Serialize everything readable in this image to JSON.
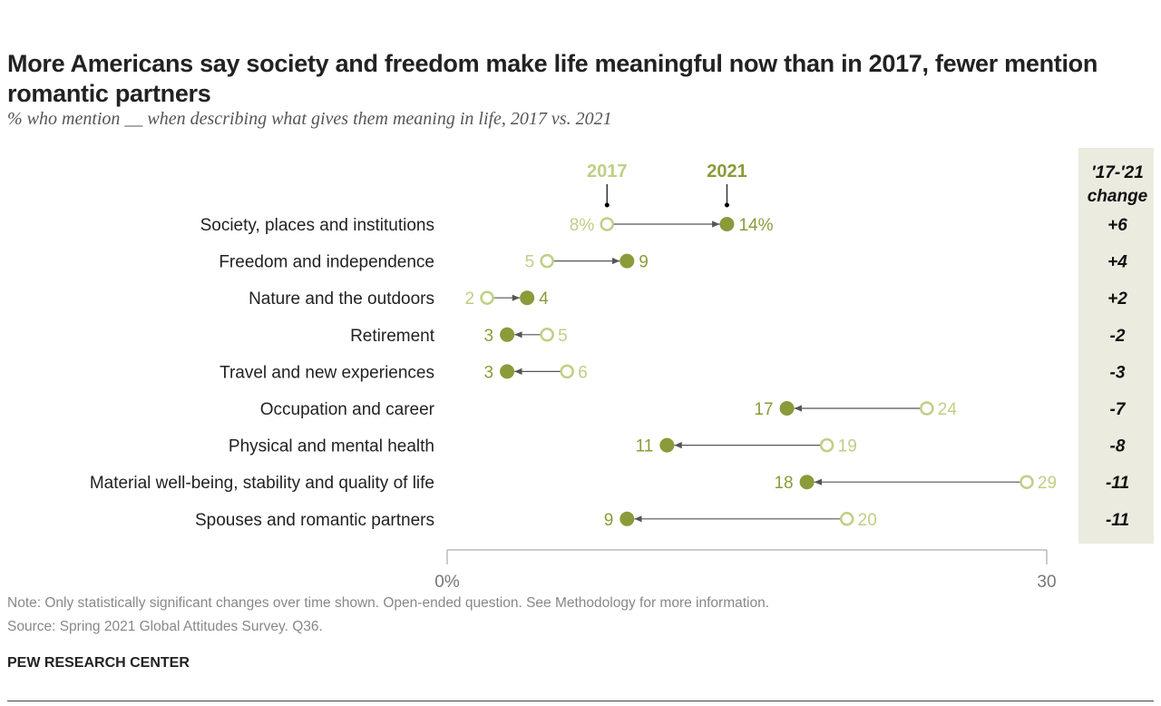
{
  "title": "More Americans say society and freedom make life meaningful now than in 2017, fewer mention romantic partners",
  "subtitle": "% who mention __ when describing what gives them meaning in life, 2017 vs. 2021",
  "note": "Note: Only statistically significant changes over time shown. Open-ended question. See Methodology for more information.",
  "source": "Source: Spring 2021 Global Attitudes Survey. Q36.",
  "brand": "PEW RESEARCH CENTER",
  "colors": {
    "y2017": "#bfcf85",
    "y2021": "#8a9b3a",
    "change_bg": "#ebebe0"
  },
  "chart_data": {
    "type": "dot-plot",
    "xlim": [
      0,
      30
    ],
    "x_ticks": [
      "0%",
      "30"
    ],
    "change_header": [
      "'17-'21",
      "change"
    ],
    "series": [
      {
        "name": "2017"
      },
      {
        "name": "2021"
      }
    ],
    "categories": [
      "Society, places and institutions",
      "Freedom and independence",
      "Nature and the outdoors",
      "Retirement",
      "Travel and new experiences",
      "Occupation and career",
      "Physical and mental health",
      "Material well-being, stability and quality of life",
      "Spouses and romantic partners"
    ],
    "values_2017": [
      8,
      5,
      2,
      5,
      6,
      24,
      19,
      29,
      20
    ],
    "values_2021": [
      14,
      9,
      4,
      3,
      3,
      17,
      11,
      18,
      9
    ],
    "change": [
      "+6",
      "+4",
      "+2",
      "-2",
      "-3",
      "-7",
      "-8",
      "-11",
      "-11"
    ]
  }
}
